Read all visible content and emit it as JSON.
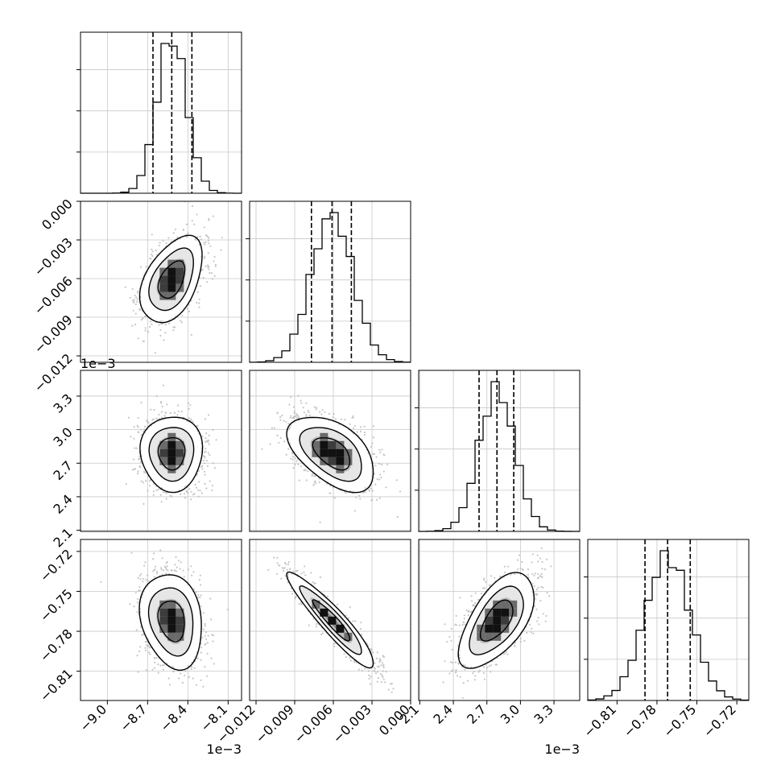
{
  "chart_data": {
    "type": "corner",
    "grid": true,
    "parameters": [
      {
        "index": 0,
        "range": [
          -9.2,
          -8.0
        ],
        "ticks": [
          -9.0,
          -8.7,
          -8.4,
          -8.1
        ],
        "tick_labels": [
          "−9.0",
          "−8.7",
          "−8.4",
          "−8.1"
        ],
        "offset_label": "1e−3",
        "quantiles": [
          -8.66,
          -8.52,
          -8.37
        ],
        "median": -8.52,
        "sd": 0.11
      },
      {
        "index": 1,
        "range": [
          -0.0125,
          0.0
        ],
        "ticks": [
          -0.012,
          -0.009,
          -0.006,
          -0.003,
          0.0
        ],
        "tick_labels": [
          "−0.012",
          "−0.009",
          "−0.006",
          "−0.003",
          "0.000"
        ],
        "offset_label": "",
        "quantiles": [
          -0.0077,
          -0.0061,
          -0.0046
        ],
        "median": -0.0061,
        "sd": 0.0016
      },
      {
        "index": 2,
        "range": [
          2.09,
          3.53
        ],
        "ticks": [
          2.1,
          2.4,
          2.7,
          3.0,
          3.3
        ],
        "tick_labels": [
          "2.1",
          "2.4",
          "2.7",
          "3.0",
          "3.3"
        ],
        "offset_label": "1e−3",
        "quantiles": [
          2.63,
          2.79,
          2.94
        ],
        "median": 2.79,
        "sd": 0.16
      },
      {
        "index": 3,
        "range": [
          -0.832,
          -0.711
        ],
        "ticks": [
          -0.81,
          -0.78,
          -0.75,
          -0.72
        ],
        "tick_labels": [
          "−0.81",
          "−0.78",
          "−0.75",
          "−0.72"
        ],
        "offset_label": "",
        "quantiles": [
          -0.789,
          -0.772,
          -0.755
        ],
        "median": -0.772,
        "sd": 0.017
      }
    ],
    "correlations": [
      {
        "pair": [
          0,
          1
        ],
        "rho": 0.45
      },
      {
        "pair": [
          0,
          2
        ],
        "rho": 0.0
      },
      {
        "pair": [
          1,
          2
        ],
        "rho": -0.5
      },
      {
        "pair": [
          0,
          3
        ],
        "rho": -0.2
      },
      {
        "pair": [
          1,
          3
        ],
        "rho": -0.93
      },
      {
        "pair": [
          2,
          3
        ],
        "rho": 0.6
      }
    ],
    "histogram_bins": 20,
    "contour_levels_sigma": [
      0.5,
      1.0,
      1.5,
      2.0
    ],
    "colors": {
      "line": "#000000",
      "points": "#b4b4b4",
      "grid": "#c8c8c8"
    }
  }
}
